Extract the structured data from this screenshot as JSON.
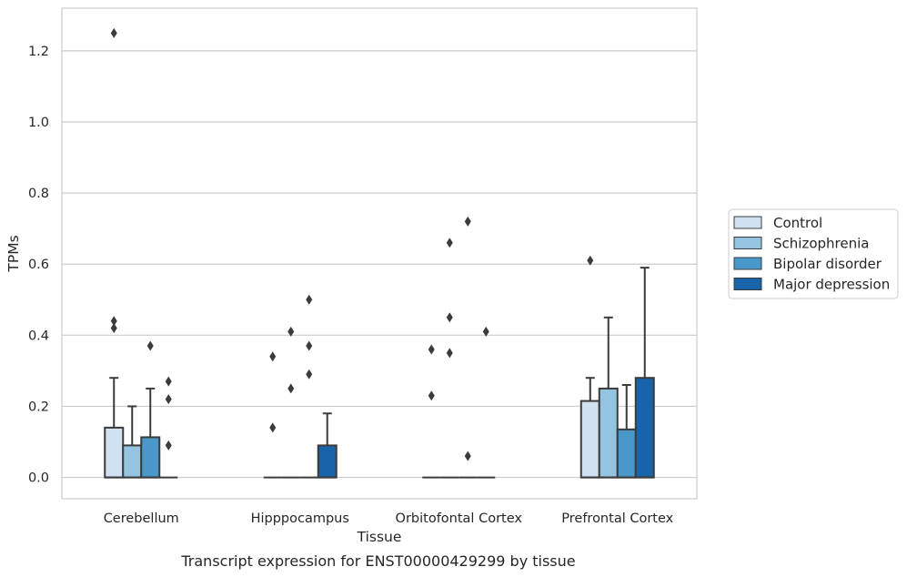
{
  "caption": "Transcript expression for ENST00000429299 by tissue",
  "chart_data": {
    "type": "box",
    "xlabel": "Tissue",
    "ylabel": "TPMs",
    "ylim": [
      -0.06,
      1.32
    ],
    "yticks": [
      "0.0",
      "0.2",
      "0.4",
      "0.6",
      "0.8",
      "1.0",
      "1.2"
    ],
    "ytick_values": [
      0,
      0.2,
      0.4,
      0.6,
      0.8,
      1.0,
      1.2
    ],
    "grid": true,
    "legend_position": "center-right",
    "categories": [
      "Cerebellum",
      "Hipppocampus",
      "Orbitofontal Cortex",
      "Prefrontal Cortex"
    ],
    "series": [
      {
        "name": "Control",
        "color": "#d0e1f2",
        "boxes": [
          {
            "q1": 0,
            "median": 0,
            "q3": 0.14,
            "whisker_low": 0,
            "whisker_high": 0.28,
            "outliers": [
              0.42,
              0.44,
              1.25
            ]
          },
          {
            "q1": 0,
            "median": 0,
            "q3": 0,
            "whisker_low": 0,
            "whisker_high": 0,
            "outliers": [
              0.14,
              0.34
            ]
          },
          {
            "q1": 0,
            "median": 0,
            "q3": 0,
            "whisker_low": 0,
            "whisker_high": 0,
            "outliers": [
              0.23,
              0.36
            ]
          },
          {
            "q1": 0,
            "median": 0,
            "q3": 0.215,
            "whisker_low": 0,
            "whisker_high": 0.28,
            "outliers": [
              0.61
            ]
          }
        ]
      },
      {
        "name": "Schizophrenia",
        "color": "#94c4df",
        "boxes": [
          {
            "q1": 0,
            "median": 0,
            "q3": 0.09,
            "whisker_low": 0,
            "whisker_high": 0.2,
            "outliers": []
          },
          {
            "q1": 0,
            "median": 0,
            "q3": 0,
            "whisker_low": 0,
            "whisker_high": 0,
            "outliers": [
              0.25,
              0.41
            ]
          },
          {
            "q1": 0,
            "median": 0,
            "q3": 0,
            "whisker_low": 0,
            "whisker_high": 0,
            "outliers": [
              0.35,
              0.45,
              0.66
            ]
          },
          {
            "q1": 0,
            "median": 0,
            "q3": 0.25,
            "whisker_low": 0,
            "whisker_high": 0.45,
            "outliers": []
          }
        ]
      },
      {
        "name": "Bipolar disorder",
        "color": "#4a98c9",
        "boxes": [
          {
            "q1": 0,
            "median": 0,
            "q3": 0.113,
            "whisker_low": 0,
            "whisker_high": 0.25,
            "outliers": [
              0.37
            ]
          },
          {
            "q1": 0,
            "median": 0,
            "q3": 0,
            "whisker_low": 0,
            "whisker_high": 0,
            "outliers": [
              0.29,
              0.37,
              0.5
            ]
          },
          {
            "q1": 0,
            "median": 0,
            "q3": 0,
            "whisker_low": 0,
            "whisker_high": 0,
            "outliers": [
              0.06,
              0.72
            ]
          },
          {
            "q1": 0,
            "median": 0,
            "q3": 0.135,
            "whisker_low": 0,
            "whisker_high": 0.26,
            "outliers": []
          }
        ]
      },
      {
        "name": "Major depression",
        "color": "#1764ab",
        "boxes": [
          {
            "q1": 0,
            "median": 0,
            "q3": 0,
            "whisker_low": 0,
            "whisker_high": 0,
            "outliers": [
              0.09,
              0.22,
              0.27
            ]
          },
          {
            "q1": 0,
            "median": 0,
            "q3": 0.09,
            "whisker_low": 0,
            "whisker_high": 0.18,
            "outliers": []
          },
          {
            "q1": 0,
            "median": 0,
            "q3": 0,
            "whisker_low": 0,
            "whisker_high": 0,
            "outliers": [
              0.41
            ]
          },
          {
            "q1": 0,
            "median": 0,
            "q3": 0.28,
            "whisker_low": 0,
            "whisker_high": 0.59,
            "outliers": []
          }
        ]
      }
    ]
  }
}
